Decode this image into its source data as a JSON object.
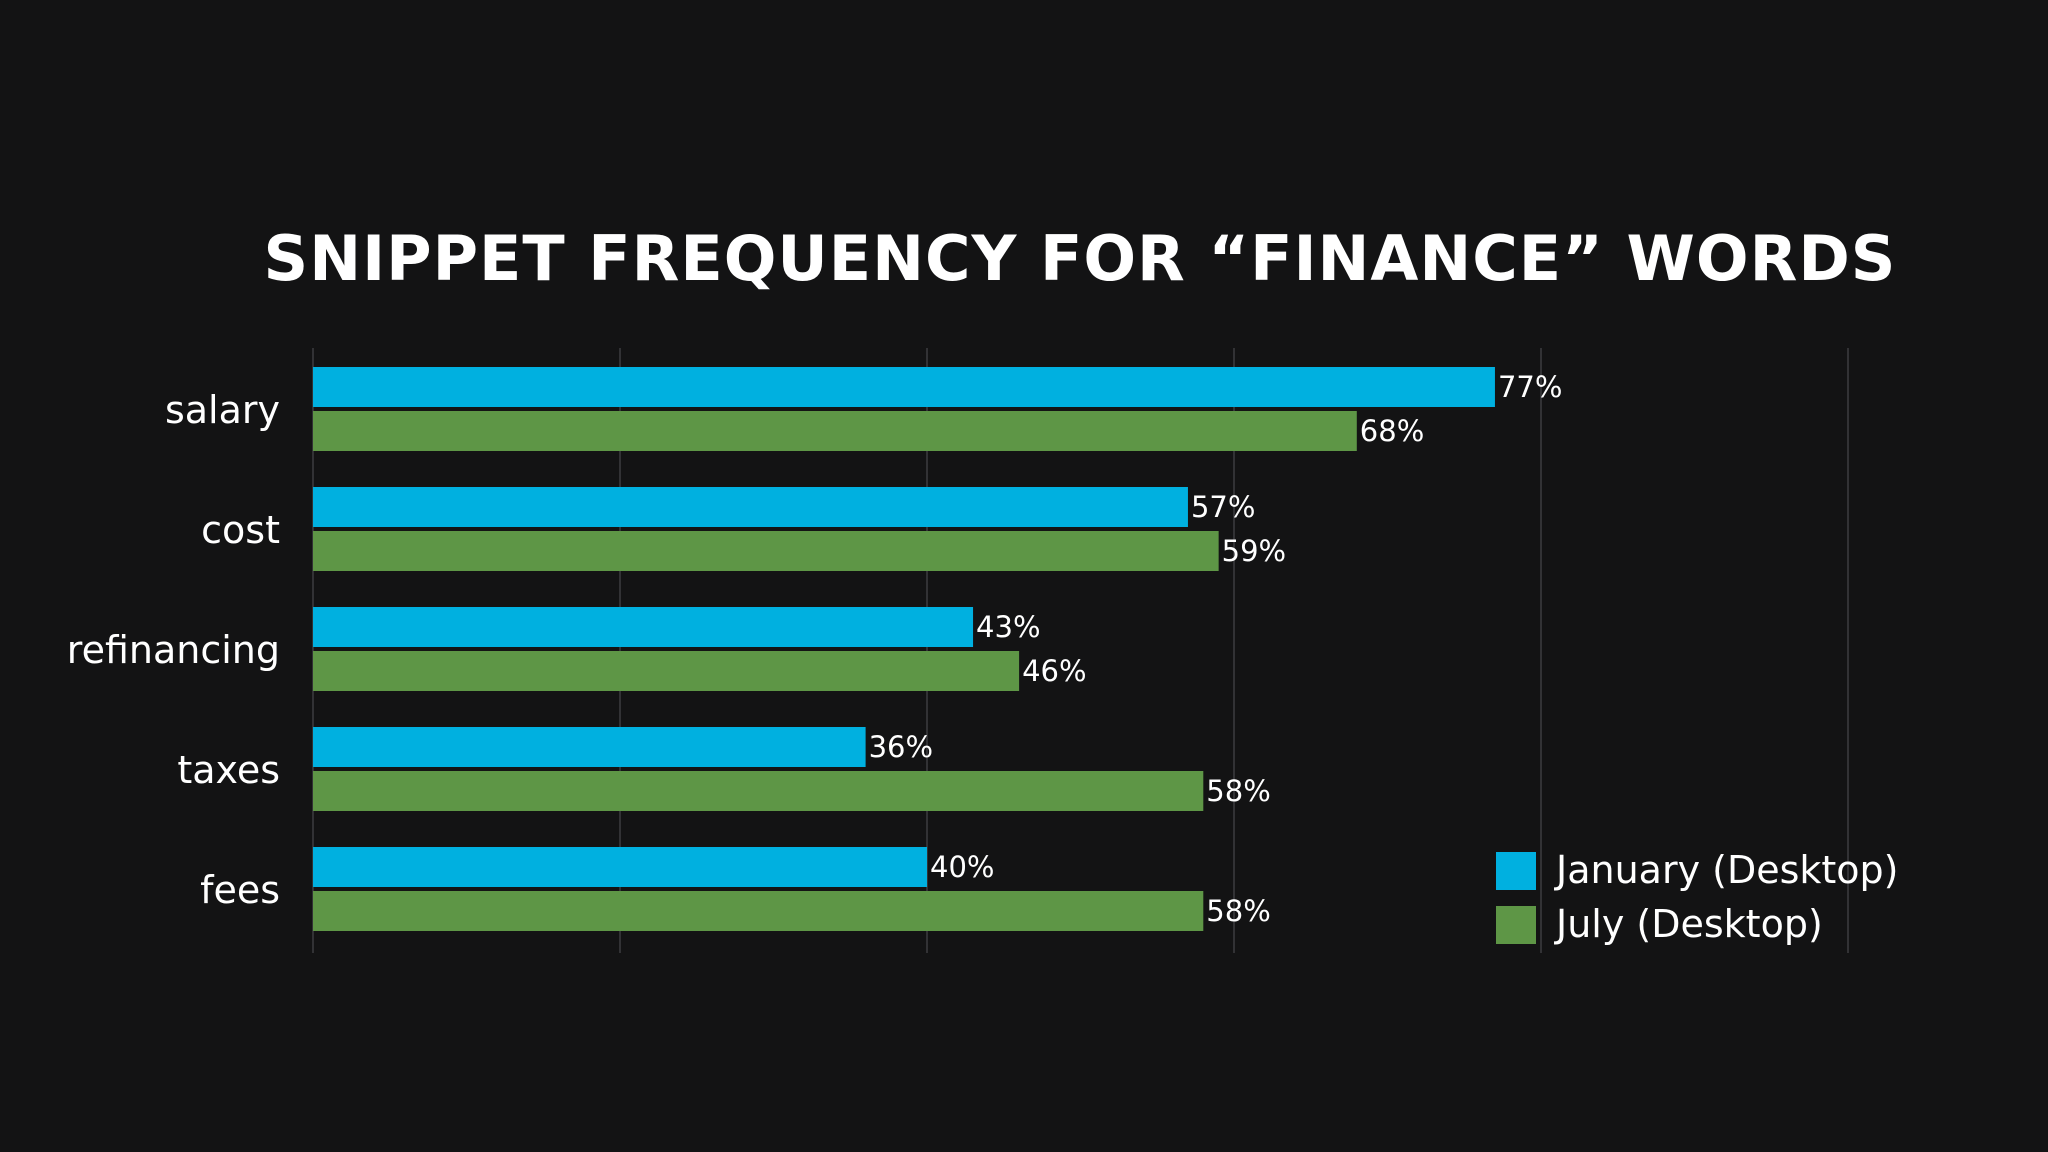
{
  "chart_data": {
    "type": "bar",
    "orientation": "horizontal",
    "title": "SNIPPET FREQUENCY FOR “FINANCE” WORDS",
    "categories": [
      "salary",
      "cost",
      "refinancing",
      "taxes",
      "fees"
    ],
    "series": [
      {
        "name": "January (Desktop)",
        "color": "#00b0e0",
        "values": [
          77,
          57,
          43,
          36,
          40
        ],
        "labels": [
          "77%",
          "57%",
          "43%",
          "36%",
          "40%"
        ]
      },
      {
        "name": "July (Desktop)",
        "color": "#5e9646",
        "values": [
          68,
          59,
          46,
          58,
          58
        ],
        "labels": [
          "68%",
          "59%",
          "46%",
          "58%",
          "58%"
        ]
      }
    ],
    "xlim": [
      0,
      100
    ],
    "grid": true,
    "legend": "bottom-right"
  }
}
